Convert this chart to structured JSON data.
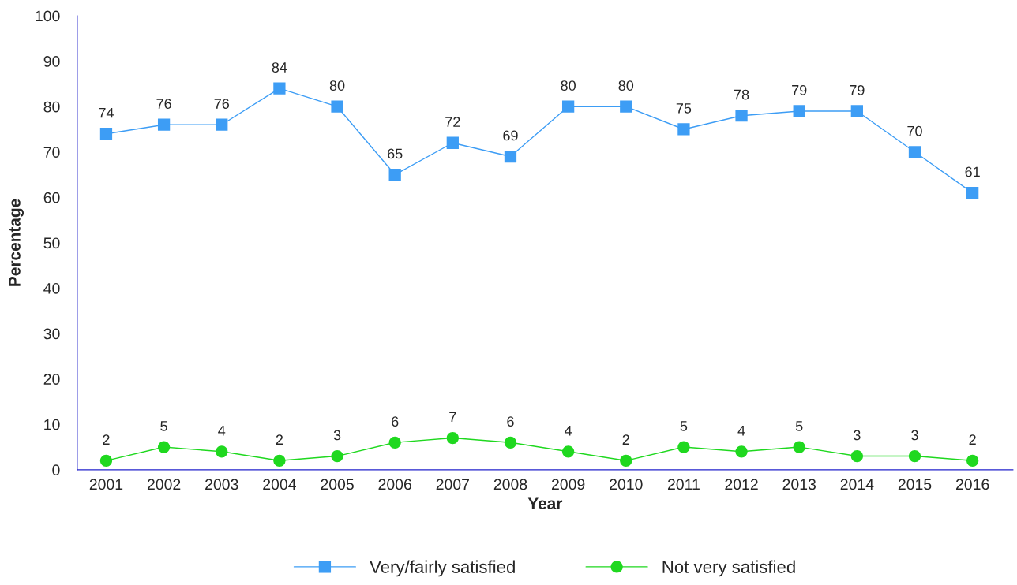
{
  "chart_data": {
    "type": "line",
    "xlabel": "Year",
    "ylabel": "Percentage",
    "categories": [
      "2001",
      "2002",
      "2003",
      "2004",
      "2005",
      "2006",
      "2007",
      "2008",
      "2009",
      "2010",
      "2011",
      "2012",
      "2013",
      "2014",
      "2015",
      "2016"
    ],
    "series": [
      {
        "name": "Very/fairly satisfied",
        "color": "#3d9df5",
        "marker": "square",
        "values": [
          74,
          76,
          76,
          84,
          80,
          65,
          72,
          69,
          80,
          80,
          75,
          78,
          79,
          79,
          70,
          61
        ]
      },
      {
        "name": "Not very satisfied",
        "color": "#1fd81f",
        "marker": "circle",
        "values": [
          2,
          5,
          4,
          2,
          3,
          6,
          7,
          6,
          4,
          2,
          5,
          4,
          5,
          3,
          3,
          2
        ]
      }
    ],
    "ylim": [
      0,
      100
    ],
    "yticks": [
      0,
      10,
      20,
      30,
      40,
      50,
      60,
      70,
      80,
      90,
      100
    ],
    "data_labels": true,
    "legend": "bottom",
    "grid": false,
    "line_style": "solid"
  }
}
